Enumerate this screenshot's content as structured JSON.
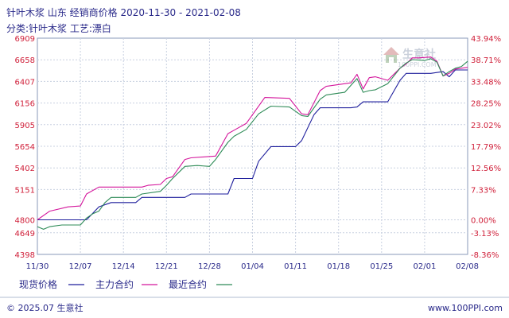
{
  "header": {
    "title_line1": "针叶木浆 山东 经销商价格 2020-11-30 - 2021-02-08",
    "title_line2": "分类:针叶木浆 工艺:漂白"
  },
  "watermark": {
    "text": "生意社",
    "url": "100PPI.COM"
  },
  "legend": {
    "label": "现货价格",
    "items": [
      {
        "name": "主力合约",
        "color": "#d4169c"
      },
      {
        "name": "最近合约",
        "color": "#2e8b57"
      }
    ],
    "spot_color": "#1e1e9c"
  },
  "footer": {
    "copyright": "© 2025.07 生意社",
    "site": "www.100PPI.com"
  },
  "chart_data": {
    "type": "line",
    "x_ticks": [
      {
        "label": "11/30",
        "x": 0
      },
      {
        "label": "12/07",
        "x": 7
      },
      {
        "label": "12/14",
        "x": 14
      },
      {
        "label": "12/21",
        "x": 21
      },
      {
        "label": "12/28",
        "x": 28
      },
      {
        "label": "01/04",
        "x": 35
      },
      {
        "label": "01/11",
        "x": 42
      },
      {
        "label": "01/18",
        "x": 49
      },
      {
        "label": "01/25",
        "x": 56
      },
      {
        "label": "02/01",
        "x": 63
      },
      {
        "label": "02/08",
        "x": 70
      }
    ],
    "xlim": [
      0,
      70
    ],
    "ylim": [
      4398,
      6909
    ],
    "y_ticks_left": [
      "6909",
      "6658",
      "6407",
      "6156",
      "5905",
      "5654",
      "5402",
      "5151",
      "4800",
      "4649",
      "4398"
    ],
    "y_ticks_left_values": [
      6909,
      6658,
      6407,
      6156,
      5905,
      5654,
      5402,
      5151,
      4800,
      4649,
      4398
    ],
    "y_ticks_right": [
      "43.94%",
      "38.71%",
      "33.48%",
      "28.25%",
      "23.02%",
      "17.79%",
      "12.56%",
      "7.33%",
      "0.00%",
      "-3.13%",
      "-8.36%"
    ],
    "series": [
      {
        "name": "现货价格",
        "color": "#1e1e9c",
        "points": [
          [
            0,
            4800
          ],
          [
            8,
            4800
          ],
          [
            10,
            4950
          ],
          [
            12,
            5000
          ],
          [
            16,
            5000
          ],
          [
            17,
            5060
          ],
          [
            24,
            5060
          ],
          [
            25,
            5100
          ],
          [
            31,
            5100
          ],
          [
            32,
            5280
          ],
          [
            35,
            5280
          ],
          [
            36,
            5480
          ],
          [
            38,
            5650
          ],
          [
            42,
            5650
          ],
          [
            43,
            5720
          ],
          [
            45,
            6020
          ],
          [
            46,
            6100
          ],
          [
            51,
            6100
          ],
          [
            52,
            6110
          ],
          [
            53,
            6170
          ],
          [
            57,
            6170
          ],
          [
            59,
            6420
          ],
          [
            60,
            6500
          ],
          [
            64,
            6500
          ],
          [
            66,
            6520
          ],
          [
            67,
            6460
          ],
          [
            68,
            6540
          ],
          [
            70,
            6540
          ]
        ]
      },
      {
        "name": "主力合约",
        "color": "#d4169c",
        "points": [
          [
            0,
            4800
          ],
          [
            2,
            4900
          ],
          [
            5,
            4950
          ],
          [
            7,
            4960
          ],
          [
            8,
            5100
          ],
          [
            10,
            5180
          ],
          [
            17,
            5180
          ],
          [
            18,
            5200
          ],
          [
            20,
            5210
          ],
          [
            21,
            5280
          ],
          [
            22,
            5300
          ],
          [
            24,
            5500
          ],
          [
            25,
            5520
          ],
          [
            29,
            5540
          ],
          [
            31,
            5800
          ],
          [
            32,
            5840
          ],
          [
            34,
            5920
          ],
          [
            37,
            6220
          ],
          [
            41,
            6210
          ],
          [
            43,
            6030
          ],
          [
            44,
            6020
          ],
          [
            46,
            6300
          ],
          [
            47,
            6350
          ],
          [
            51,
            6390
          ],
          [
            52,
            6490
          ],
          [
            53,
            6320
          ],
          [
            54,
            6450
          ],
          [
            55,
            6460
          ],
          [
            57,
            6420
          ],
          [
            59,
            6560
          ],
          [
            60,
            6610
          ],
          [
            61,
            6680
          ],
          [
            62,
            6680
          ],
          [
            64,
            6690
          ],
          [
            65,
            6640
          ],
          [
            66,
            6470
          ],
          [
            67,
            6500
          ],
          [
            68,
            6550
          ],
          [
            69,
            6560
          ],
          [
            70,
            6570
          ]
        ]
      },
      {
        "name": "最近合约",
        "color": "#2e8b57",
        "points": [
          [
            0,
            4720
          ],
          [
            1,
            4690
          ],
          [
            2,
            4720
          ],
          [
            4,
            4740
          ],
          [
            7,
            4740
          ],
          [
            8,
            4820
          ],
          [
            9,
            4870
          ],
          [
            10,
            4900
          ],
          [
            11,
            5000
          ],
          [
            12,
            5060
          ],
          [
            16,
            5060
          ],
          [
            17,
            5100
          ],
          [
            20,
            5130
          ],
          [
            21,
            5200
          ],
          [
            22,
            5280
          ],
          [
            24,
            5420
          ],
          [
            26,
            5430
          ],
          [
            28,
            5420
          ],
          [
            29,
            5500
          ],
          [
            31,
            5700
          ],
          [
            32,
            5770
          ],
          [
            34,
            5850
          ],
          [
            36,
            6030
          ],
          [
            38,
            6120
          ],
          [
            41,
            6110
          ],
          [
            43,
            6010
          ],
          [
            44,
            6000
          ],
          [
            46,
            6200
          ],
          [
            47,
            6250
          ],
          [
            50,
            6280
          ],
          [
            52,
            6440
          ],
          [
            53,
            6280
          ],
          [
            54,
            6300
          ],
          [
            55,
            6310
          ],
          [
            57,
            6380
          ],
          [
            59,
            6560
          ],
          [
            60,
            6620
          ],
          [
            61,
            6660
          ],
          [
            63,
            6650
          ],
          [
            64,
            6670
          ],
          [
            65,
            6630
          ],
          [
            66,
            6470
          ],
          [
            67,
            6520
          ],
          [
            68,
            6560
          ],
          [
            69,
            6580
          ],
          [
            70,
            6640
          ]
        ]
      }
    ]
  }
}
